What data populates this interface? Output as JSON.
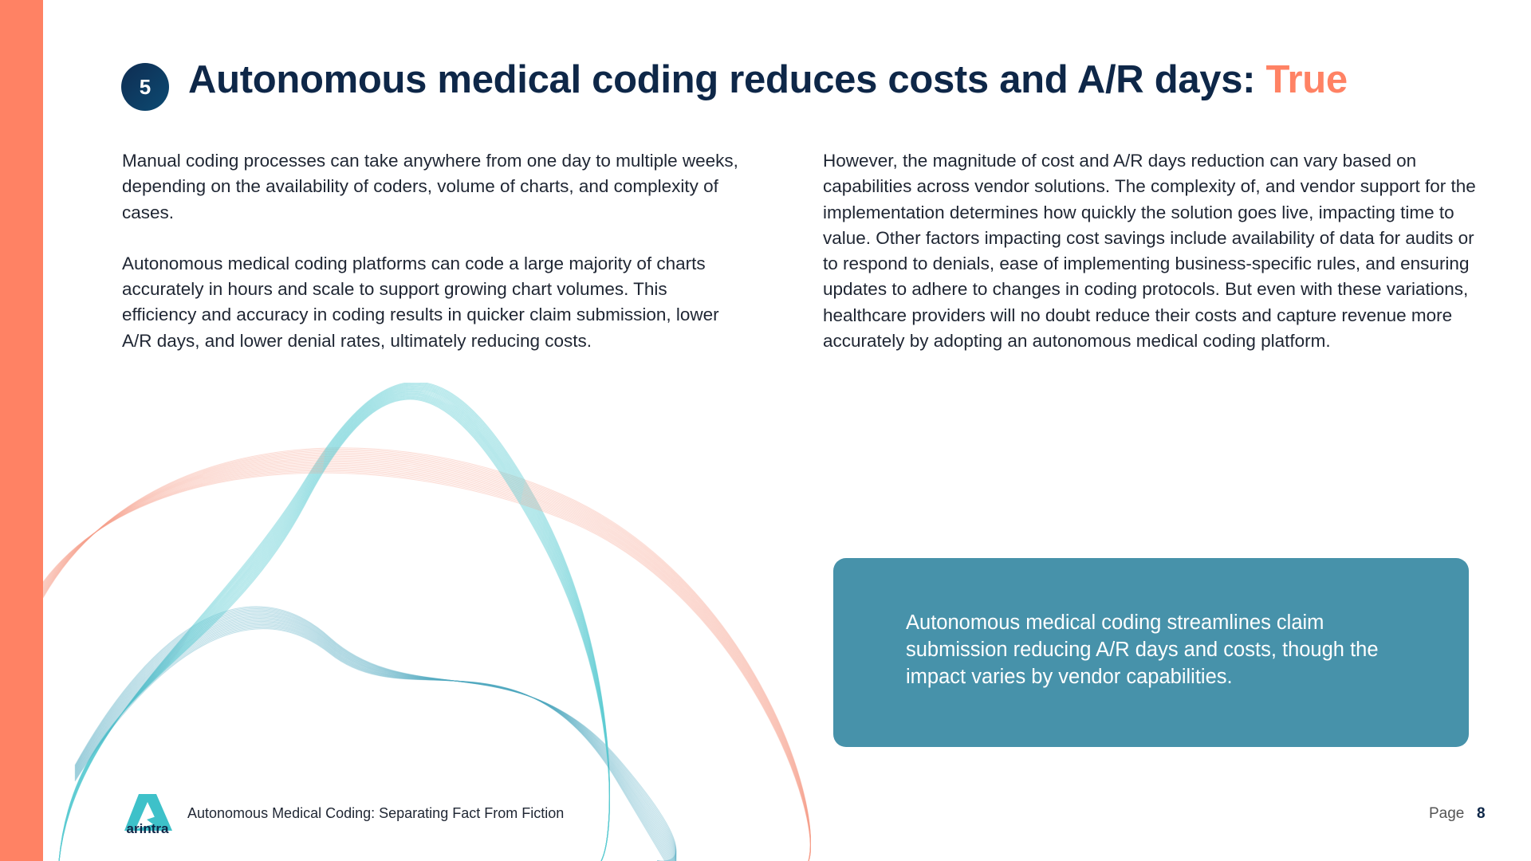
{
  "colors": {
    "accent": "#FF8264",
    "navy": "#0E2748",
    "callout": "#4792AA",
    "teal": "#5ECDD3"
  },
  "slide": {
    "number": "5",
    "title": "Autonomous medical coding reduces costs and A/R days:",
    "verdict": "True"
  },
  "left_column": [
    "Manual coding processes can take anywhere from one day to multiple weeks, depending on the availability of coders, volume of charts, and complexity of cases.",
    "Autonomous medical coding platforms can code a large majority of charts accurately in hours and scale to support growing chart volumes. This efficiency and accuracy in coding results in quicker claim submission, lower A/R days, and lower denial rates, ultimately reducing costs."
  ],
  "right_column": [
    "However, the magnitude of cost and A/R days reduction can vary based on capabilities across vendor solutions. The complexity of, and vendor support for the implementation determines how quickly the solution goes live, impacting time to value. Other factors impacting cost savings include availability of data for audits or to respond to denials, ease of implementing business-specific rules, and ensuring updates to adhere to changes in coding protocols. But even with these variations, healthcare providers will no doubt reduce their costs and capture revenue more accurately by adopting an autonomous medical coding platform."
  ],
  "callout": "Autonomous medical coding streamlines claim submission reducing A/R days and costs, though the impact varies by vendor capabilities.",
  "footer": {
    "logo_text": "arintra",
    "document_title": "Autonomous Medical Coding: Separating Fact From Fiction",
    "page_label": "Page",
    "page_number": "8"
  }
}
